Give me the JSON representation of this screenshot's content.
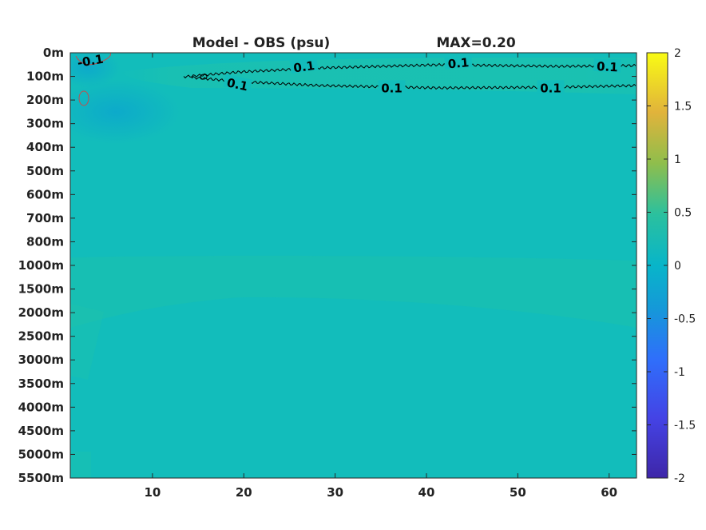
{
  "chart_data": {
    "type": "heatmap",
    "title": "Model - OBS (psu)",
    "subtitle": "MAX=0.20",
    "y_tick_labels": [
      "0m",
      "100m",
      "200m",
      "300m",
      "400m",
      "500m",
      "600m",
      "700m",
      "800m",
      "1000m",
      "1500m",
      "2000m",
      "2500m",
      "3000m",
      "3500m",
      "4000m",
      "4500m",
      "5000m",
      "5500m"
    ],
    "x_ticks": [
      10,
      20,
      30,
      40,
      50,
      60
    ],
    "xlim": [
      1,
      63
    ],
    "colorbar": {
      "range": [
        -2,
        2
      ],
      "ticks": [
        "2",
        "1.5",
        "1",
        "0.5",
        "0",
        "-0.5",
        "-1",
        "-1.5",
        "-2"
      ]
    },
    "background_value": 0.05,
    "contour_level": 0.1,
    "contour_labels": [
      {
        "text": "0.1",
        "x": 26.6,
        "depth_index": 0.6,
        "angle": -8
      },
      {
        "text": "0.1",
        "x": 43.5,
        "depth_index": 0.45,
        "angle": -5
      },
      {
        "text": "0.1",
        "x": 59.8,
        "depth_index": 0.6,
        "angle": 3
      },
      {
        "text": "0.1",
        "x": 19.3,
        "depth_index": 1.35,
        "angle": 12
      },
      {
        "text": "0.1",
        "x": 36.2,
        "depth_index": 1.5,
        "angle": 0
      },
      {
        "text": "0.1",
        "x": 53.6,
        "depth_index": 1.5,
        "angle": 0
      },
      {
        "text": "-0.1",
        "x": 3.2,
        "depth_index": 0.35,
        "angle": -10
      }
    ],
    "colors": {
      "background": "#12bdbb",
      "positive_band": "#1fc2aa",
      "negative_patch": "#0faec8",
      "contour_positive": "#000000",
      "contour_negative": "#c0504d"
    }
  }
}
